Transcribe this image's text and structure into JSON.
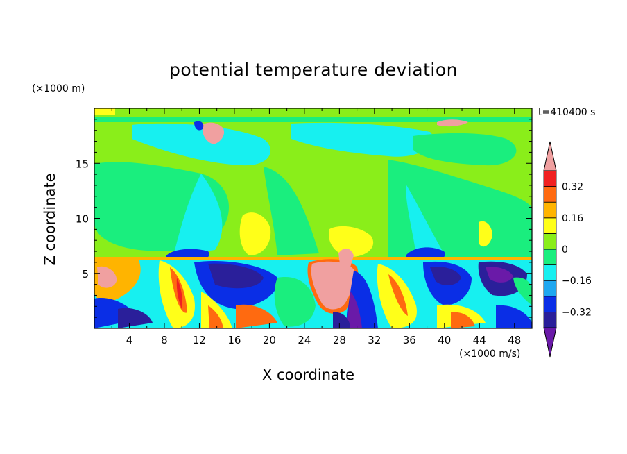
{
  "chart_data": {
    "type": "heatmap",
    "title": "potential temperature deviation",
    "xlabel": "X coordinate",
    "ylabel": "Z coordinate",
    "x_unit": "(×1000 m/s)",
    "y_unit": "(×1000 m)",
    "time_label": "t=410400 s",
    "xlim": [
      0,
      50
    ],
    "ylim": [
      0,
      20
    ],
    "x_ticks": [
      4,
      8,
      12,
      16,
      20,
      24,
      28,
      32,
      36,
      40,
      44,
      48
    ],
    "y_ticks": [
      5,
      10,
      15
    ],
    "colorbar": {
      "levels": [
        -0.4,
        -0.32,
        -0.24,
        -0.16,
        -0.08,
        0,
        0.08,
        0.16,
        0.24,
        0.32,
        0.4
      ],
      "labels": [
        "0.32",
        "0.16",
        "0",
        "−0.16",
        "−0.32"
      ],
      "label_values": [
        0.32,
        0.16,
        0,
        -0.16,
        -0.32
      ],
      "colors": [
        "#6a1aa8",
        "#2a1f9a",
        "#0a2ee6",
        "#1ea7f0",
        "#17f0f0",
        "#1aee7e",
        "#8aee1a",
        "#ffff19",
        "#ffb400",
        "#ff6a10",
        "#f02020",
        "#f0a0a0"
      ]
    }
  }
}
